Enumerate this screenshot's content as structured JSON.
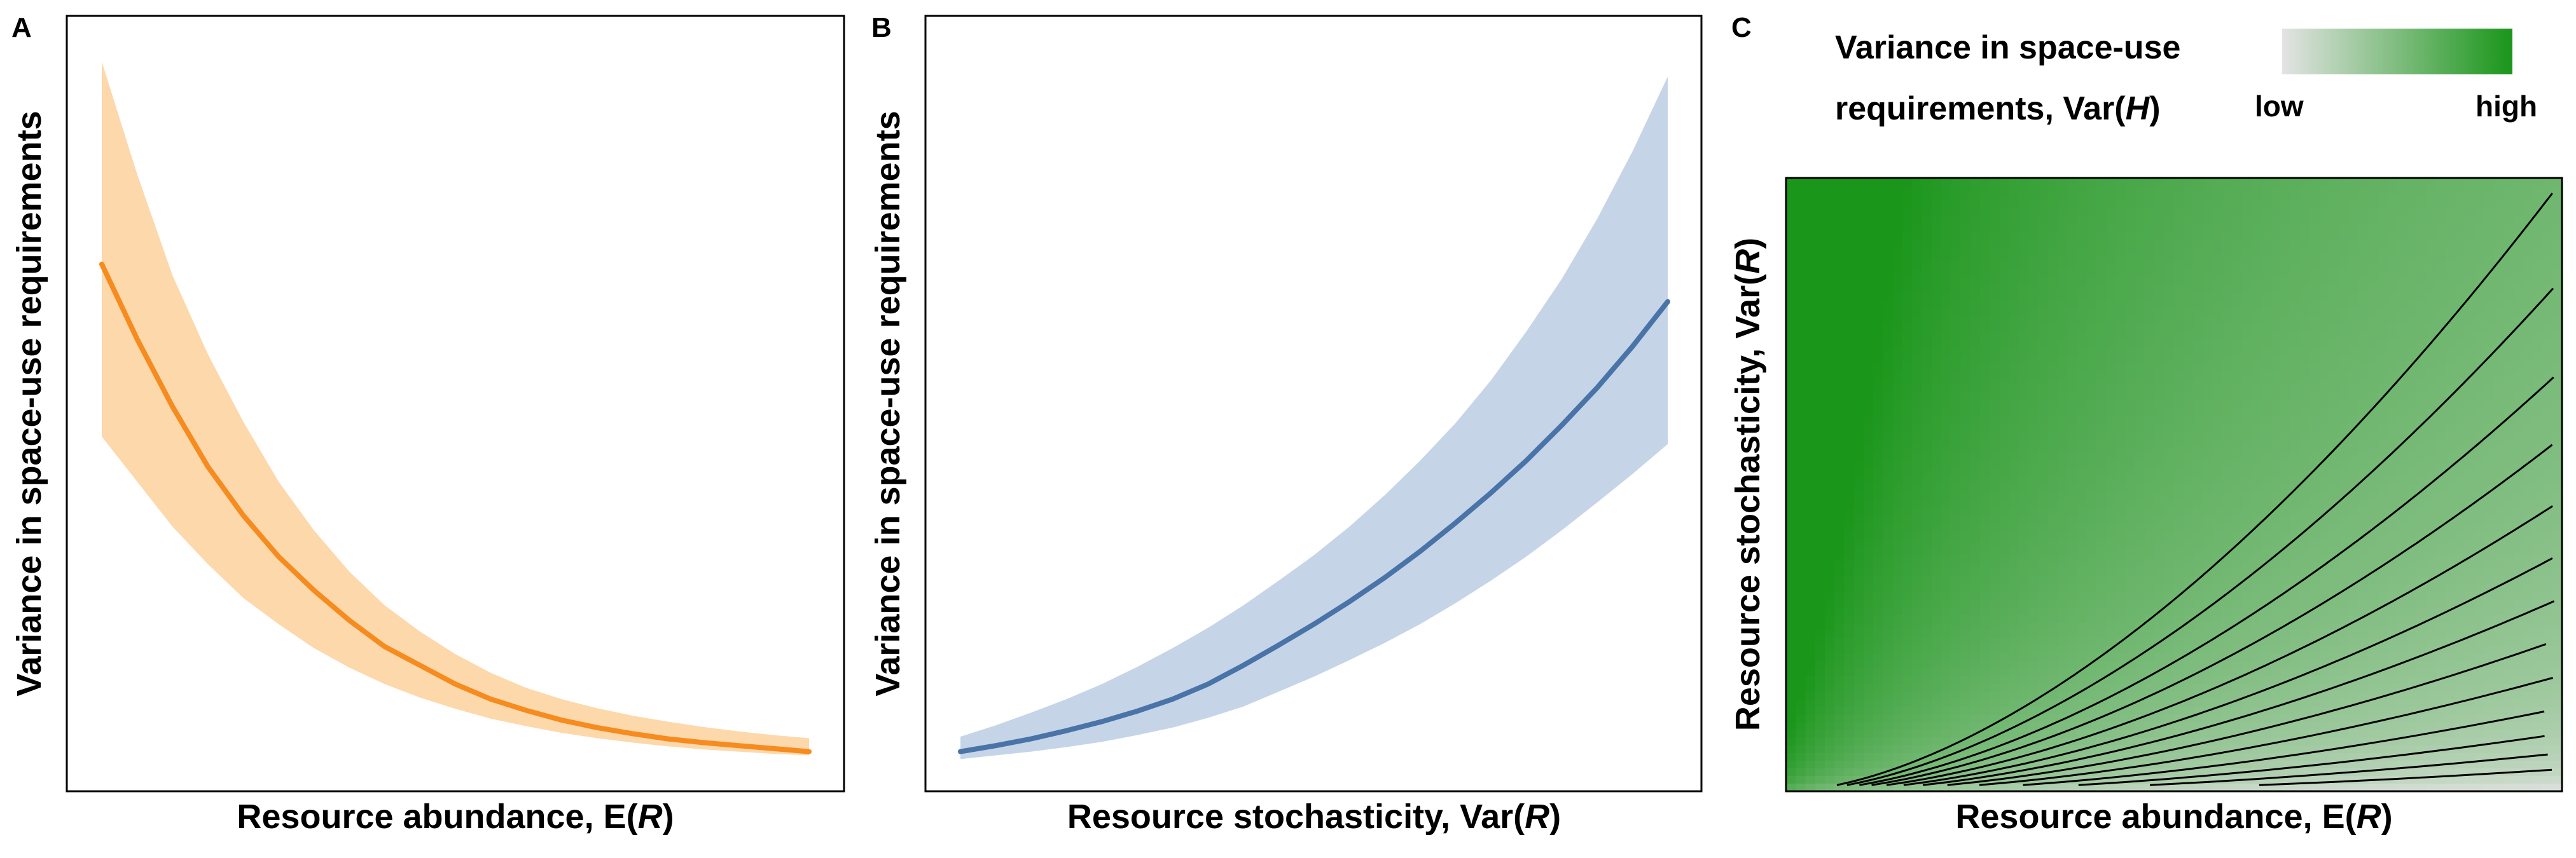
{
  "colors": {
    "panel_a_line": "#f68b1f",
    "panel_a_band": "#fdd8ab",
    "panel_b_line": "#4a73a8",
    "panel_b_band": "#c5d5e7",
    "heat_low": "#e3e3e3",
    "heat_high": "#1a961a",
    "contour": "#000000"
  },
  "chart_data": [
    {
      "panel": "A",
      "type": "line",
      "xlabel": "Resource abundance, E(R)",
      "ylabel": "Variance in space-use requirements",
      "x": [
        0,
        0.05,
        0.1,
        0.15,
        0.2,
        0.25,
        0.3,
        0.35,
        0.4,
        0.45,
        0.5,
        0.55,
        0.6,
        0.65,
        0.7,
        0.75,
        0.8,
        0.85,
        0.9,
        0.95,
        1
      ],
      "series": [
        {
          "values": [
            0.68,
            0.58,
            0.49,
            0.41,
            0.345,
            0.29,
            0.245,
            0.205,
            0.17,
            0.145,
            0.12,
            0.1,
            0.085,
            0.072,
            0.062,
            0.054,
            0.047,
            0.042,
            0.038,
            0.034,
            0.03
          ],
          "lower": [
            0.45,
            0.39,
            0.33,
            0.28,
            0.235,
            0.2,
            0.168,
            0.142,
            0.12,
            0.102,
            0.087,
            0.074,
            0.064,
            0.055,
            0.048,
            0.042,
            0.037,
            0.033,
            0.03,
            0.027,
            0.025
          ],
          "upper": [
            0.95,
            0.8,
            0.665,
            0.56,
            0.47,
            0.39,
            0.325,
            0.27,
            0.225,
            0.19,
            0.16,
            0.135,
            0.115,
            0.1,
            0.088,
            0.078,
            0.07,
            0.063,
            0.057,
            0.052,
            0.048
          ]
        }
      ],
      "ylim": [
        0,
        1
      ]
    },
    {
      "panel": "B",
      "type": "line",
      "xlabel": "Resource stochasticity, Var(R)",
      "ylabel": "Variance in space-use requirements",
      "x": [
        0,
        0.05,
        0.1,
        0.15,
        0.2,
        0.25,
        0.3,
        0.35,
        0.4,
        0.45,
        0.5,
        0.55,
        0.6,
        0.65,
        0.7,
        0.75,
        0.8,
        0.85,
        0.9,
        0.95,
        1
      ],
      "series": [
        {
          "values": [
            0.03,
            0.038,
            0.047,
            0.058,
            0.07,
            0.084,
            0.1,
            0.12,
            0.145,
            0.172,
            0.2,
            0.23,
            0.262,
            0.297,
            0.335,
            0.375,
            0.418,
            0.465,
            0.515,
            0.57,
            0.63
          ],
          "lower": [
            0.02,
            0.025,
            0.03,
            0.036,
            0.043,
            0.052,
            0.062,
            0.075,
            0.09,
            0.11,
            0.13,
            0.152,
            0.175,
            0.2,
            0.228,
            0.258,
            0.29,
            0.325,
            0.362,
            0.4,
            0.44
          ],
          "upper": [
            0.05,
            0.065,
            0.082,
            0.1,
            0.12,
            0.143,
            0.168,
            0.195,
            0.225,
            0.258,
            0.292,
            0.33,
            0.372,
            0.418,
            0.468,
            0.525,
            0.59,
            0.66,
            0.74,
            0.83,
            0.93
          ]
        }
      ],
      "ylim": [
        0,
        1
      ]
    },
    {
      "panel": "C",
      "type": "heatmap",
      "xlabel": "Resource abundance, E(R)",
      "ylabel": "Resource stochasticity, Var(R)",
      "legend_title_line1": "Variance in space-use",
      "legend_title_line2": "requirements, Var(H)",
      "legend_low": "low",
      "legend_high": "high",
      "legend_placement": "top-right",
      "surface": "value increases with Var(R) and decreases with E(R)",
      "contour_levels": [
        0.3,
        0.38,
        0.46,
        0.55,
        0.65,
        0.75,
        0.85,
        0.95,
        1.06,
        1.18,
        1.3,
        1.45,
        1.6
      ]
    }
  ]
}
